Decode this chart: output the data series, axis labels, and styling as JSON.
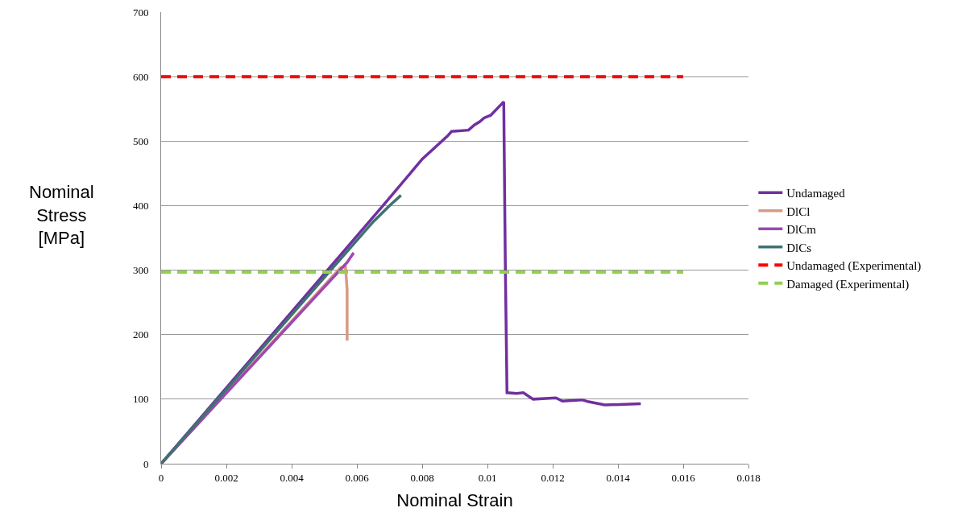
{
  "chart_data": {
    "type": "line",
    "xlabel": "Nominal Strain",
    "ylabel": "Nominal\nStress\n[MPa]",
    "xlim": [
      0,
      0.018
    ],
    "xticks": [
      0,
      0.002,
      0.004,
      0.006,
      0.008,
      0.01,
      0.012,
      0.014,
      0.016,
      0.018
    ],
    "ylim": [
      0,
      700
    ],
    "yticks": [
      0,
      100,
      200,
      300,
      400,
      500,
      600,
      700
    ],
    "grid": "y",
    "legend": "right",
    "marker": "none",
    "series": [
      {
        "name": "Undamaged",
        "color": "#7030a0",
        "line_style": "solid",
        "x": [
          0,
          0.0068,
          0.008,
          0.00878,
          0.0089,
          0.00942,
          0.0096,
          0.00976,
          0.0099,
          0.0101,
          0.0105,
          0.01055,
          0.0106,
          0.0109,
          0.0111,
          0.0114,
          0.0121,
          0.0123,
          0.0129,
          0.0131,
          0.0136,
          0.0147
        ],
        "values": [
          0,
          400,
          472,
          508,
          515,
          517,
          525,
          530,
          536,
          540,
          561,
          300,
          110,
          109,
          110,
          100,
          102,
          97,
          99,
          96,
          91,
          93
        ]
      },
      {
        "name": "DlCl",
        "color": "#d99a85",
        "line_style": "solid",
        "x": [
          0,
          0.0055,
          0.00565,
          0.0057,
          0.0057
        ],
        "values": [
          0,
          304,
          305,
          270,
          191
        ]
      },
      {
        "name": "DlCm",
        "color": "#9e48b0",
        "line_style": "solid",
        "x": [
          0,
          0.0057,
          0.0059
        ],
        "values": [
          0,
          312,
          327
        ]
      },
      {
        "name": "DlCs",
        "color": "#3e7272",
        "line_style": "solid",
        "x": [
          0,
          0.0065,
          0.007,
          0.00735
        ],
        "values": [
          0,
          375,
          400,
          416
        ]
      },
      {
        "name": "Undamaged (Experimental)",
        "color": "#ff0000",
        "line_style": "dashed",
        "x": [
          0,
          0.016
        ],
        "values": [
          600,
          600
        ]
      },
      {
        "name": "Damaged (Experimental)",
        "color": "#92d050",
        "line_style": "dashed",
        "x": [
          0,
          0.016
        ],
        "values": [
          297,
          297
        ]
      }
    ]
  }
}
